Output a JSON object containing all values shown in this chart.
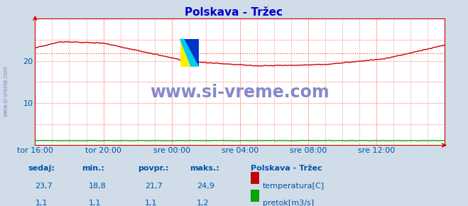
{
  "title": "Polskava - Tržec",
  "title_color": "#0000cc",
  "bg_color": "#d0dce8",
  "plot_bg_color": "#ffffff",
  "grid_color": "#ffaaaa",
  "axis_color": "#cc0000",
  "text_color": "#0055aa",
  "xlim": [
    0,
    24
  ],
  "ylim": [
    0,
    30
  ],
  "yticks": [
    10,
    20
  ],
  "avg_line": 21.7,
  "avg_line_color": "#ff4444",
  "temp_color": "#cc0000",
  "flow_color": "#00aa00",
  "x_tick_labels": [
    "tor 16:00",
    "tor 20:00",
    "sre 00:00",
    "sre 04:00",
    "sre 08:00",
    "sre 12:00"
  ],
  "x_tick_positions": [
    0,
    4,
    8,
    12,
    16,
    20
  ],
  "watermark": "www.si-vreme.com",
  "watermark_color": "#8888cc",
  "side_label": "www.si-vreme.com",
  "sedaj_label": "sedaj:",
  "min_label": "min.:",
  "povpr_label": "povpr.:",
  "maks_label": "maks.:",
  "station_label": "Polskava - Tržec",
  "temp_row": [
    "23,7",
    "18,8",
    "21,7",
    "24,9"
  ],
  "flow_row": [
    "1,1",
    "1,1",
    "1,1",
    "1,2"
  ],
  "legend_temp": "temperatura[C]",
  "legend_flow": "pretok[m3/s]",
  "logo_yellow": "#ffee00",
  "logo_blue": "#0033cc",
  "logo_cyan": "#00ccee"
}
